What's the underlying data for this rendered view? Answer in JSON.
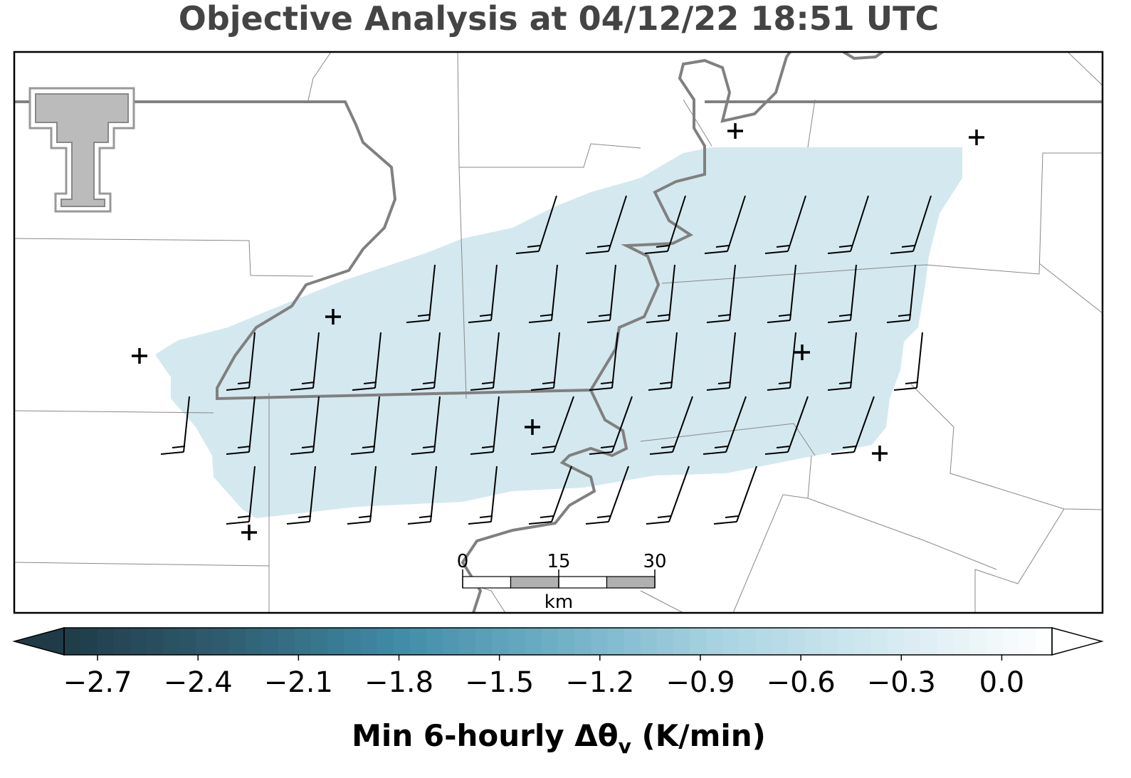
{
  "title": "Objective Analysis at 04/12/22 18:51 UTC",
  "scale_bar": {
    "ticks": [
      0,
      15,
      30
    ],
    "unit": "km"
  },
  "colorbar": {
    "clim": [
      -2.8,
      0.15
    ],
    "ticks": [
      {
        "value": -2.7,
        "label": "−2.7"
      },
      {
        "value": -2.4,
        "label": "−2.4"
      },
      {
        "value": -2.1,
        "label": "−2.1"
      },
      {
        "value": -1.8,
        "label": "−1.8"
      },
      {
        "value": -1.5,
        "label": "−1.5"
      },
      {
        "value": -1.2,
        "label": "−1.2"
      },
      {
        "value": -0.9,
        "label": "−0.9"
      },
      {
        "value": -0.6,
        "label": "−0.6"
      },
      {
        "value": -0.3,
        "label": "−0.3"
      },
      {
        "value": 0.0,
        "label": "0.0"
      }
    ],
    "colors": [
      "#1f3b48",
      "#2f5e70",
      "#3f8aa6",
      "#6fb0c6",
      "#a9d4e2",
      "#d5eaf1",
      "#ffffff"
    ],
    "label_parts": [
      "Min 6-hourly Δθ",
      "v",
      " (K/min)"
    ]
  }
}
